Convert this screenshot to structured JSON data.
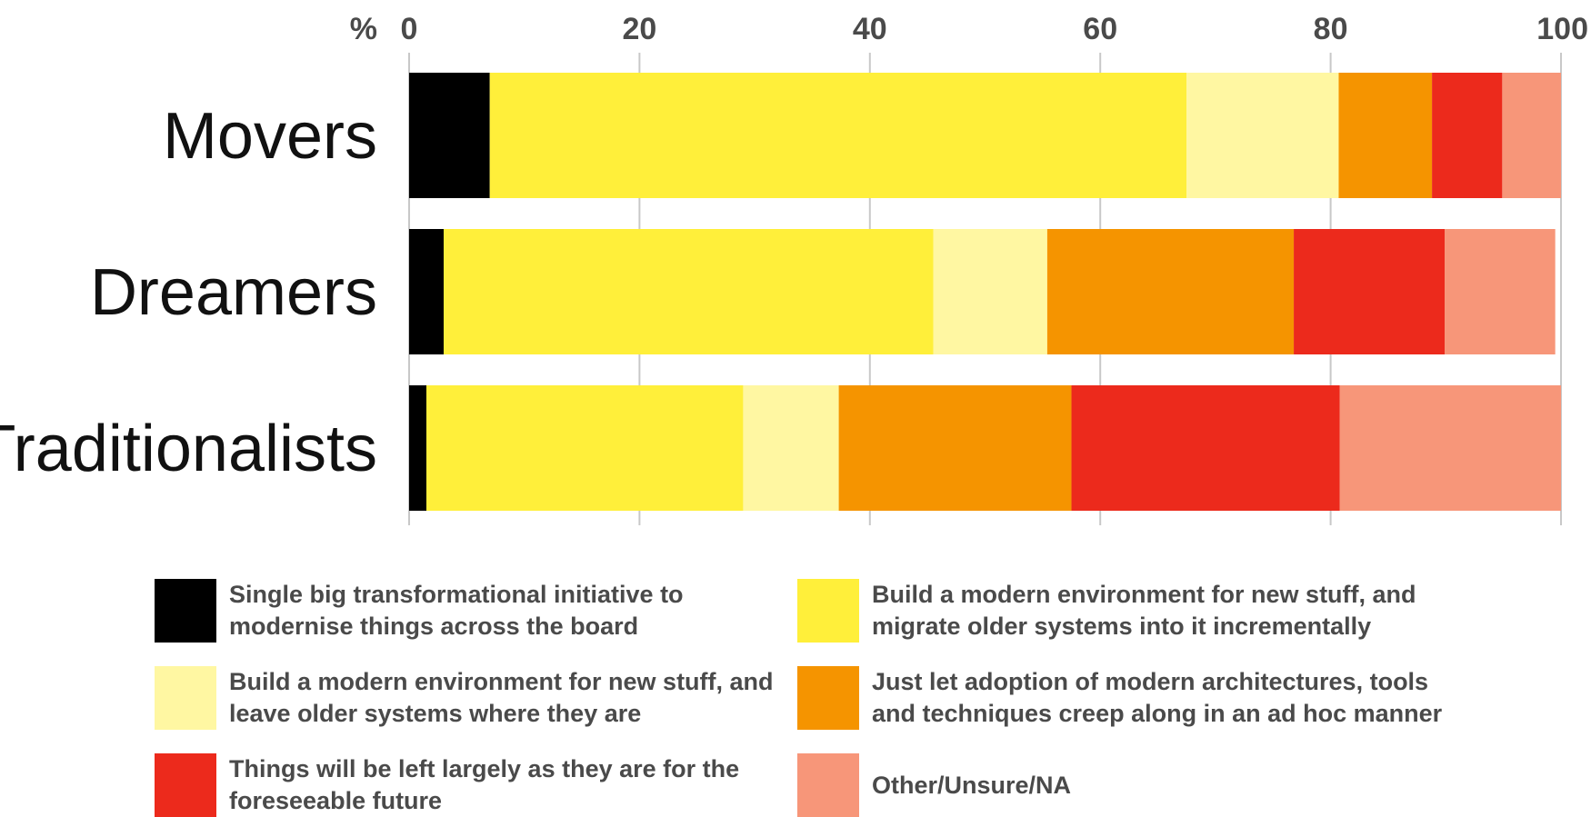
{
  "chart_data": {
    "type": "bar",
    "orientation": "horizontal",
    "stacked": true,
    "axis_unit_label": "%",
    "xlim": [
      0,
      100
    ],
    "xticks": [
      0,
      20,
      40,
      60,
      80,
      100
    ],
    "xtick_labels": [
      "0",
      "20",
      "40",
      "60",
      "80",
      "100"
    ],
    "axis_position": "top",
    "grid": true,
    "legend_placement": "bottom",
    "categories": [
      "Movers",
      "Dreamers",
      "Traditionalists"
    ],
    "series": [
      {
        "name": "Single big transformational initiative to modernise things across the board",
        "color": "#000000",
        "values": [
          7,
          3,
          1.5
        ]
      },
      {
        "name": "Build a modern environment for new stuff, and migrate older systems into it incrementally",
        "color": "#FFEF3A",
        "values": [
          60.5,
          42.5,
          27.5
        ]
      },
      {
        "name": "Build a modern environment for new stuff, and leave older systems where they are",
        "color": "#FFF7A2",
        "values": [
          13.2,
          9.9,
          8.3
        ]
      },
      {
        "name": "Just let adoption of modern architectures, tools and techniques creep along in an ad hoc manner",
        "color": "#F59400",
        "values": [
          8.1,
          21.4,
          20.2
        ]
      },
      {
        "name": "Things will be left largely as they are for the foreseeable future",
        "color": "#EC2A1C",
        "values": [
          6.1,
          13.1,
          23.3
        ]
      },
      {
        "name": "Other/Unsure/NA",
        "color": "#F79679",
        "values": [
          5.1,
          9.6,
          19.2
        ]
      }
    ]
  },
  "legend": {
    "items": [
      {
        "line1": "Single big transformational initiative to",
        "line2": "modernise things across the board",
        "color": "#000000"
      },
      {
        "line1": "Build a modern environment for new stuff, and",
        "line2": "migrate older systems into it incrementally",
        "color": "#FFEF3A"
      },
      {
        "line1": "Build a modern environment for new stuff, and",
        "line2": "leave older systems where they are",
        "color": "#FFF7A2"
      },
      {
        "line1": "Just let adoption of modern architectures, tools",
        "line2": "and techniques creep along in an ad hoc manner",
        "color": "#F59400"
      },
      {
        "line1": "Things will be left largely as they are for the",
        "line2": "foreseeable future",
        "color": "#EC2A1C"
      },
      {
        "line1": "Other/Unsure/NA",
        "line2": "",
        "color": "#F79679"
      }
    ]
  }
}
